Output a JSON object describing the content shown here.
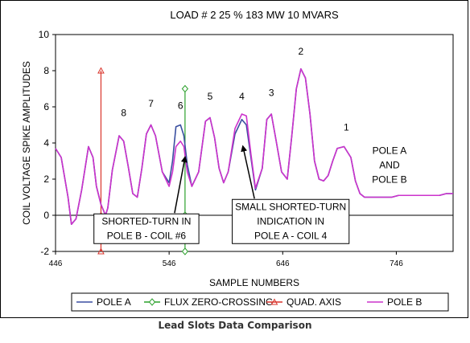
{
  "caption": "Lead Slots Data Comparison",
  "chart_data": {
    "type": "line",
    "title": "LOAD # 2  25 %  183 MW  10 MVARS",
    "xlabel": "SAMPLE NUMBERS",
    "ylabel": "COIL VOLTAGE SPIKE AMPLITUDES",
    "xlim": [
      446,
      796
    ],
    "ylim": [
      -2,
      10
    ],
    "x_ticks": [
      446,
      546,
      646,
      746
    ],
    "y_ticks": [
      -2,
      0,
      2,
      4,
      6,
      8,
      10
    ],
    "grid": false,
    "legend_position": "bottom",
    "colors": {
      "pole_a": "#3a4fa0",
      "flux": "#2ca02c",
      "quad": "#d9342b",
      "pole_b": "#cc33cc"
    },
    "series": [
      {
        "name": "POLE  A",
        "key": "pole_a",
        "x": [
          446,
          451,
          457,
          460,
          464,
          469,
          475,
          479,
          482,
          486,
          490,
          492,
          496,
          502,
          506,
          510,
          514,
          518,
          522,
          526,
          530,
          534,
          540,
          546,
          549,
          552,
          556,
          559,
          562,
          566,
          572,
          578,
          582,
          586,
          590,
          594,
          598,
          604,
          610,
          614,
          618,
          622,
          628,
          632,
          636,
          640,
          645,
          650,
          654,
          658,
          662,
          666,
          670,
          674,
          678,
          682,
          686,
          690,
          694,
          700,
          706,
          710,
          714,
          718,
          722,
          726,
          730,
          736,
          742,
          748,
          754,
          760,
          766,
          772,
          778,
          784,
          790,
          796
        ],
        "y": [
          3.7,
          3.2,
          1.0,
          -0.5,
          -0.2,
          1.4,
          3.8,
          3.2,
          1.6,
          0.6,
          0.0,
          0.4,
          2.5,
          4.4,
          4.1,
          2.7,
          1.2,
          1.0,
          2.6,
          4.5,
          5.0,
          4.4,
          2.4,
          1.8,
          3.0,
          4.9,
          5.0,
          4.4,
          2.8,
          1.6,
          2.4,
          5.2,
          5.4,
          4.3,
          2.6,
          1.8,
          2.4,
          4.5,
          5.3,
          5.0,
          3.2,
          1.4,
          2.6,
          5.3,
          5.6,
          4.2,
          2.4,
          2.0,
          4.4,
          7.0,
          8.1,
          7.6,
          5.6,
          3.0,
          2.0,
          1.9,
          2.2,
          3.0,
          3.7,
          3.8,
          3.2,
          1.9,
          1.2,
          1.0,
          1.0,
          1.0,
          1.0,
          1.0,
          1.0,
          1.1,
          1.1,
          1.1,
          1.1,
          1.1,
          1.1,
          1.1,
          1.2,
          1.2
        ]
      },
      {
        "name": "FLUX ZERO-CROSSING",
        "key": "flux",
        "x": [
          560,
          560,
          560
        ],
        "y": [
          -2,
          0,
          7
        ]
      },
      {
        "name": "QUAD. AXIS",
        "key": "quad",
        "x": [
          486,
          486,
          486
        ],
        "y": [
          -2,
          0,
          8
        ]
      },
      {
        "name": "POLE B",
        "key": "pole_b",
        "x": [
          446,
          451,
          457,
          460,
          464,
          469,
          475,
          479,
          482,
          486,
          490,
          492,
          496,
          502,
          506,
          510,
          514,
          518,
          522,
          526,
          530,
          534,
          540,
          546,
          549,
          552,
          556,
          559,
          562,
          566,
          572,
          578,
          582,
          586,
          590,
          594,
          598,
          604,
          610,
          614,
          618,
          622,
          628,
          632,
          636,
          640,
          645,
          650,
          654,
          658,
          662,
          666,
          670,
          674,
          678,
          682,
          686,
          690,
          694,
          700,
          706,
          710,
          714,
          718,
          722,
          726,
          730,
          736,
          742,
          748,
          754,
          760,
          766,
          772,
          778,
          784,
          790,
          796
        ],
        "y": [
          3.7,
          3.2,
          1.0,
          -0.5,
          -0.2,
          1.4,
          3.8,
          3.2,
          1.6,
          0.6,
          0.0,
          0.4,
          2.5,
          4.4,
          4.1,
          2.7,
          1.2,
          1.0,
          2.6,
          4.5,
          5.0,
          4.4,
          2.4,
          1.6,
          2.4,
          3.8,
          4.1,
          3.8,
          2.4,
          1.6,
          2.4,
          5.2,
          5.4,
          4.3,
          2.6,
          1.8,
          2.4,
          4.8,
          5.6,
          5.5,
          3.4,
          1.5,
          2.6,
          5.3,
          5.6,
          4.2,
          2.4,
          2.0,
          4.4,
          7.0,
          8.1,
          7.6,
          5.6,
          3.0,
          2.0,
          1.9,
          2.2,
          3.0,
          3.7,
          3.8,
          3.2,
          1.9,
          1.2,
          1.0,
          1.0,
          1.0,
          1.0,
          1.0,
          1.0,
          1.1,
          1.1,
          1.1,
          1.1,
          1.1,
          1.1,
          1.1,
          1.2,
          1.2
        ]
      }
    ],
    "pole_labels": [
      {
        "text": "8",
        "x": 506,
        "y": 5.5
      },
      {
        "text": "7",
        "x": 530,
        "y": 6.0
      },
      {
        "text": "6",
        "x": 556,
        "y": 5.9
      },
      {
        "text": "5",
        "x": 582,
        "y": 6.4
      },
      {
        "text": "4",
        "x": 610,
        "y": 6.4
      },
      {
        "text": "3",
        "x": 636,
        "y": 6.6
      },
      {
        "text": "2",
        "x": 662,
        "y": 8.9
      },
      {
        "text": "1",
        "x": 702,
        "y": 4.7
      }
    ],
    "annotations": [
      {
        "text": "POLE A",
        "x": 740,
        "y": 3.4
      },
      {
        "text": "AND",
        "x": 740,
        "y": 2.6
      },
      {
        "text": "POLE B",
        "x": 740,
        "y": 1.8
      },
      {
        "text": "SHORTED-TURN IN",
        "x": 526,
        "y": -0.5,
        "arrow_to": [
          560,
          3.2
        ]
      },
      {
        "text": "POLE B - COIL #6",
        "x": 526,
        "y": -1.3
      },
      {
        "text": "SMALL SHORTED-TURN",
        "x": 653,
        "y": 0.3,
        "arrow_to": [
          611,
          3.8
        ]
      },
      {
        "text": "INDICATION IN",
        "x": 653,
        "y": -0.5
      },
      {
        "text": "POLE A - COIL 4",
        "x": 653,
        "y": -1.3
      }
    ]
  }
}
